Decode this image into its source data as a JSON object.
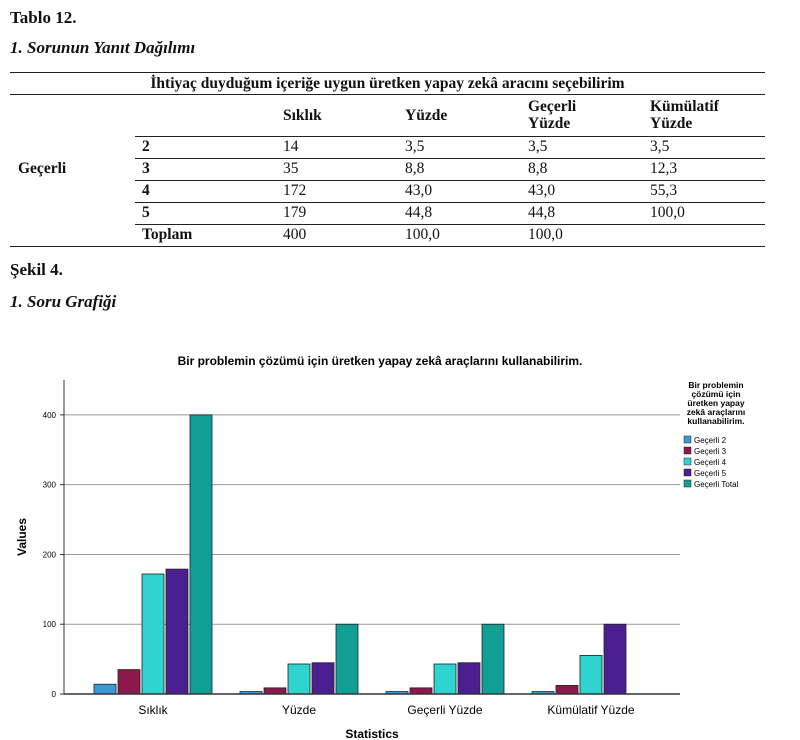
{
  "heading": {
    "table_label": "Tablo 12.",
    "table_title": "1. Sorunun Yanıt Dağılımı",
    "figure_label": "Şekil 4.",
    "figure_title": "1. Soru Grafiği"
  },
  "table": {
    "caption": "İhtiyaç duyduğum içeriğe uygun üretken yapay zekâ aracını seçebilirim",
    "group_label": "Geçerli",
    "columns": [
      "Sıklık",
      "Yüzde",
      "Geçerli Yüzde",
      "Kümülatif Yüzde"
    ],
    "rows": [
      {
        "label": "2",
        "values": [
          "14",
          "3,5",
          "3,5",
          "3,5"
        ]
      },
      {
        "label": "3",
        "values": [
          "35",
          "8,8",
          "8,8",
          "12,3"
        ]
      },
      {
        "label": "4",
        "values": [
          "172",
          "43,0",
          "43,0",
          "55,3"
        ]
      },
      {
        "label": "5",
        "values": [
          "179",
          "44,8",
          "44,8",
          "100,0"
        ]
      },
      {
        "label": "Toplam",
        "values": [
          "400",
          "100,0",
          "100,0",
          ""
        ]
      }
    ]
  },
  "chart_data": {
    "type": "bar",
    "title": "Bir problemin çözümü için üretken yapay zekâ araçlarını kullanabilirim.",
    "xlabel": "Statistics",
    "ylabel": "Values",
    "ylim": [
      0,
      450
    ],
    "yticks": [
      0,
      100,
      200,
      300,
      400
    ],
    "grid": true,
    "legend_placement": "right",
    "legend_title": "Bir problemin çözümü için üretken yapay zekâ araçlarını kullanabilirim.",
    "categories": [
      "Sıklık",
      "Yüzde",
      "Geçerli Yüzde",
      "Kümülatif Yüzde"
    ],
    "series": [
      {
        "name": "Geçerli 2",
        "color": "#3a9ad9",
        "values": [
          14,
          3.5,
          3.5,
          3.5
        ]
      },
      {
        "name": "Geçerli 3",
        "color": "#8b1a4a",
        "values": [
          35,
          8.8,
          8.8,
          12.3
        ]
      },
      {
        "name": "Geçerli 4",
        "color": "#2fd3d0",
        "values": [
          172,
          43.0,
          43.0,
          55.3
        ]
      },
      {
        "name": "Geçerli 5",
        "color": "#4b1f8f",
        "values": [
          179,
          44.8,
          44.8,
          100.0
        ]
      },
      {
        "name": "Geçerli Total",
        "color": "#119e95",
        "values": [
          400,
          100.0,
          100.0,
          null
        ]
      }
    ]
  }
}
